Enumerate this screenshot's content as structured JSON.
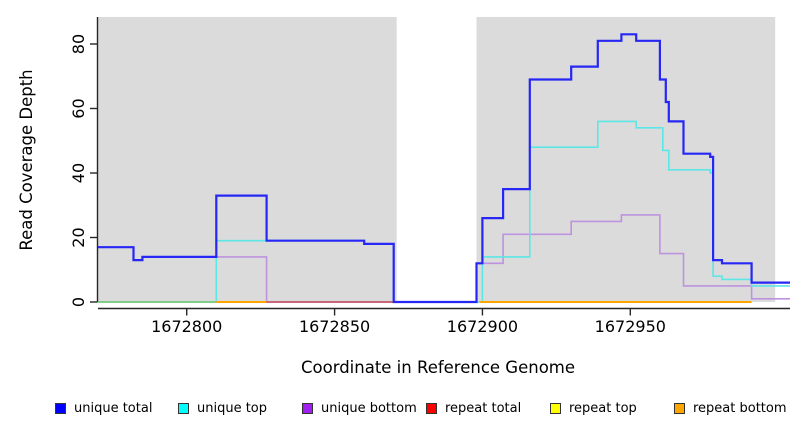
{
  "page": {
    "background": "#FFFFFF"
  },
  "chart_data": {
    "type": "line",
    "subtype": "step-coverage",
    "title": "",
    "xlabel": "Coordinate in Reference Genome",
    "ylabel": "Read Coverage Depth",
    "x_range": [
      1672770,
      1673004
    ],
    "y_range": [
      0,
      88
    ],
    "x_ticks": [
      "1672800",
      "1672850",
      "1672900",
      "1672950"
    ],
    "x_tick_values": [
      1672800,
      1672850,
      1672900,
      1672950
    ],
    "y_ticks": [
      0,
      20,
      40,
      60,
      80
    ],
    "grid": "off",
    "legend_position": "bottom",
    "plot_background": "#FFFFFF",
    "shaded_regions": [
      {
        "x1": 1672770,
        "x2": 1672871,
        "color": "#DBDBDB"
      },
      {
        "x1": 1672898,
        "x2": 1672999,
        "color": "#DBDBDB"
      }
    ],
    "gap_regions": [
      [
        1672871,
        1672898
      ],
      [
        1672999,
        1673004
      ]
    ],
    "series": [
      {
        "key": "unique-total",
        "name": "unique total",
        "legend_color": "#0000FF",
        "line_color": "#2626F5",
        "width": 2.2,
        "x_end": 1673004,
        "steps": [
          [
            1672770,
            17
          ],
          [
            1672782,
            13
          ],
          [
            1672785,
            14
          ],
          [
            1672810,
            33
          ],
          [
            1672827,
            19
          ],
          [
            1672860,
            18
          ],
          [
            1672870,
            0
          ],
          [
            1672898,
            12
          ],
          [
            1672900,
            26
          ],
          [
            1672907,
            35
          ],
          [
            1672916,
            69
          ],
          [
            1672930,
            73
          ],
          [
            1672939,
            81
          ],
          [
            1672947,
            83
          ],
          [
            1672952,
            81
          ],
          [
            1672960,
            69
          ],
          [
            1672962,
            62
          ],
          [
            1672963,
            56
          ],
          [
            1672968,
            46
          ],
          [
            1672977,
            45
          ],
          [
            1672978,
            13
          ],
          [
            1672981,
            12
          ],
          [
            1672991,
            6
          ]
        ]
      },
      {
        "key": "unique-top",
        "name": "unique top",
        "legend_color": "#00FFFF",
        "line_color": "#5CE6E6",
        "width": 1.6,
        "x_end": 1673004,
        "steps": [
          [
            1672770,
            0
          ],
          [
            1672810,
            19
          ],
          [
            1672860,
            18
          ],
          [
            1672870,
            0
          ],
          [
            1672900,
            14
          ],
          [
            1672916,
            48
          ],
          [
            1672939,
            56
          ],
          [
            1672952,
            54
          ],
          [
            1672961,
            47
          ],
          [
            1672963,
            41
          ],
          [
            1672977,
            40
          ],
          [
            1672978,
            8
          ],
          [
            1672981,
            7
          ],
          [
            1672991,
            5
          ]
        ]
      },
      {
        "key": "unique-bottom",
        "name": "unique bottom",
        "legend_color": "#A020F0",
        "line_color": "#BD93E0",
        "width": 1.6,
        "x_end": 1673004,
        "steps": [
          [
            1672770,
            17
          ],
          [
            1672782,
            13
          ],
          [
            1672785,
            14
          ],
          [
            1672827,
            0
          ],
          [
            1672898,
            12
          ],
          [
            1672907,
            21
          ],
          [
            1672930,
            25
          ],
          [
            1672947,
            27
          ],
          [
            1672960,
            15
          ],
          [
            1672968,
            5
          ],
          [
            1672991,
            1
          ]
        ]
      },
      {
        "key": "repeat-total",
        "name": "repeat total",
        "legend_color": "#FF0000",
        "line_color": "#C95A6B",
        "width": 1.8,
        "zero_segments": [
          [
            1672827,
            1672870
          ]
        ]
      },
      {
        "key": "repeat-top",
        "name": "repeat top",
        "legend_color": "#FFFF00",
        "line_color": "#7CC87C",
        "width": 1.8,
        "zero_segments": [
          [
            1672770,
            1672810
          ]
        ]
      },
      {
        "key": "repeat-bottom",
        "name": "repeat bottom",
        "legend_color": "#FFA500",
        "line_color": "#FFA500",
        "width": 2,
        "zero_segments": [
          [
            1672810,
            1672827
          ],
          [
            1672899,
            1672991
          ]
        ]
      }
    ]
  }
}
